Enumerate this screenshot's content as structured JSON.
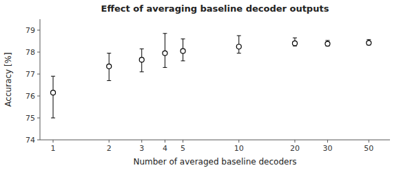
{
  "chart_data": {
    "type": "scatter",
    "title": "Effect of averaging baseline decoder outputs",
    "x_label": "Number of averaged baseline decoders",
    "y_label": "Accuracy [%]",
    "x": [
      1,
      2,
      3,
      4,
      5,
      10,
      20,
      30,
      50
    ],
    "values": [
      76.15,
      77.35,
      77.65,
      77.95,
      78.05,
      78.25,
      78.4,
      78.38,
      78.42
    ],
    "error_lower": [
      1.15,
      0.65,
      0.55,
      0.65,
      0.45,
      0.3,
      0.12,
      0.1,
      0.1
    ],
    "error_upper": [
      0.75,
      0.6,
      0.5,
      0.9,
      0.55,
      0.5,
      0.25,
      0.15,
      0.15
    ],
    "log": "x",
    "xlim": [
      0.85,
      65
    ],
    "xticks": [
      1,
      2,
      3,
      4,
      5,
      10,
      20,
      30,
      50
    ],
    "ylim": [
      74,
      79.5
    ],
    "yticks": [
      74,
      75,
      76,
      77,
      78,
      79
    ],
    "marker": "circle",
    "color": "black",
    "grid": false
  }
}
